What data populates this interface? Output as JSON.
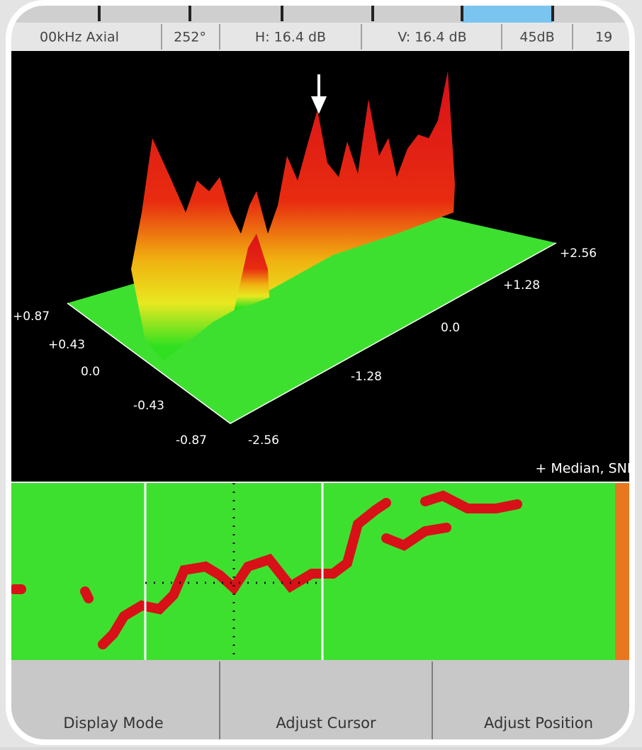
{
  "status_bar": [
    "00kHz Axial",
    "252°",
    "H: 16.4 dB",
    "V: 16.4 dB",
    "45dB",
    "19"
  ],
  "plot_3d": {
    "left_axis_labels": [
      "+0.87",
      "+0.43",
      "0.0",
      "-0.43",
      "-0.87"
    ],
    "right_axis_labels": [
      "-2.56",
      "-1.28",
      "0.0",
      "+1.28",
      "+2.56"
    ],
    "annotation": "+ Median, SNR"
  },
  "buttons": [
    "Display Mode",
    "Adjust Cursor",
    "Adjust Position"
  ]
}
